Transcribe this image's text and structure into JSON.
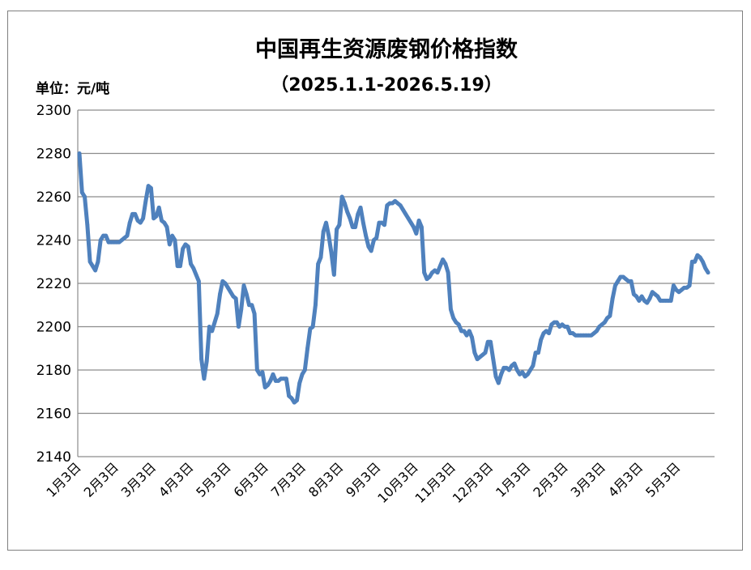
{
  "chart_data": {
    "type": "line",
    "title": "中国再生资源废钢价格指数",
    "subtitle": "（2025.1.1-2026.5.19）",
    "unit_label": "单位：元/吨",
    "ylim": [
      2140,
      2300
    ],
    "y_ticks": [
      "2140",
      "2160",
      "2180",
      "2200",
      "2220",
      "2240",
      "2260",
      "2280",
      "2300"
    ],
    "x_tick_labels": [
      "1月3日",
      "2月3日",
      "3月3日",
      "4月3日",
      "5月3日",
      "6月3日",
      "7月3日",
      "8月3日",
      "9月3日",
      "10月3日",
      "11月3日",
      "12月3日",
      "1月3日",
      "2月3日",
      "3月3日",
      "4月3日",
      "5月3日"
    ],
    "grid": true,
    "legend": false,
    "line_color": "#4f81bd",
    "series": [
      {
        "values": [
          2280,
          2262,
          2260,
          2247,
          2230,
          2228,
          2226,
          2230,
          2240,
          2242,
          2242,
          2239,
          2239,
          2239,
          2239,
          2239,
          2240,
          2241,
          2242,
          2248,
          2252,
          2252,
          2249,
          2248,
          2250,
          2258,
          2265,
          2264,
          2250,
          2251,
          2255,
          2249,
          2248,
          2246,
          2238,
          2242,
          2240,
          2228,
          2228,
          2236,
          2238,
          2237,
          2229,
          2227,
          2224,
          2221,
          2185,
          2176,
          2184,
          2200,
          2198,
          2202,
          2206,
          2215,
          2221,
          2220,
          2218,
          2216,
          2214,
          2213,
          2200,
          2208,
          2219,
          2215,
          2210,
          2210,
          2206,
          2180,
          2178,
          2179,
          2172,
          2173,
          2175,
          2178,
          2175,
          2175,
          2176,
          2176,
          2176,
          2168,
          2167,
          2165,
          2166,
          2174,
          2178,
          2180,
          2190,
          2199,
          2200,
          2210,
          2229,
          2232,
          2244,
          2248,
          2242,
          2234,
          2224,
          2245,
          2247,
          2260,
          2257,
          2253,
          2250,
          2246,
          2246,
          2252,
          2255,
          2248,
          2242,
          2237,
          2235,
          2240,
          2241,
          2248,
          2248,
          2247,
          2256,
          2257,
          2257,
          2258,
          2257,
          2256,
          2254,
          2252,
          2250,
          2248,
          2246,
          2243,
          2249,
          2246,
          2225,
          2222,
          2223,
          2225,
          2226,
          2225,
          2228,
          2231,
          2229,
          2225,
          2208,
          2204,
          2202,
          2201,
          2198,
          2198,
          2196,
          2198,
          2195,
          2188,
          2185,
          2186,
          2187,
          2188,
          2193,
          2193,
          2185,
          2177,
          2174,
          2178,
          2181,
          2181,
          2180,
          2182,
          2183,
          2180,
          2178,
          2179,
          2177,
          2178,
          2180,
          2182,
          2188,
          2188,
          2194,
          2197,
          2198,
          2197,
          2201,
          2202,
          2202,
          2200,
          2201,
          2200,
          2200,
          2197,
          2197,
          2196,
          2196,
          2196,
          2196,
          2196,
          2196,
          2196,
          2197,
          2198,
          2200,
          2201,
          2202,
          2204,
          2205,
          2213,
          2219,
          2221,
          2223,
          2223,
          2222,
          2221,
          2221,
          2215,
          2214,
          2212,
          2214,
          2212,
          2211,
          2213,
          2216,
          2215,
          2214,
          2212,
          2212,
          2212,
          2212,
          2212,
          2219,
          2217,
          2216,
          2217,
          2218,
          2218,
          2219,
          2230,
          2230,
          2233,
          2232,
          2230,
          2227,
          2225
        ]
      }
    ]
  }
}
